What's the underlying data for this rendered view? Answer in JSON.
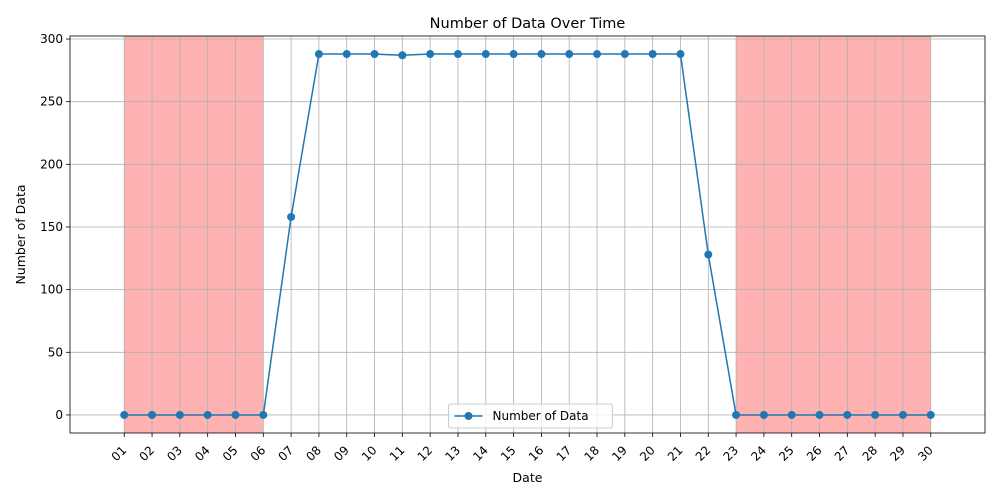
{
  "chart_data": {
    "type": "line",
    "title": "Number of Data Over Time",
    "xlabel": "Date",
    "ylabel": "Number of Data",
    "categories": [
      "01",
      "02",
      "03",
      "04",
      "05",
      "06",
      "07",
      "08",
      "09",
      "10",
      "11",
      "12",
      "13",
      "14",
      "15",
      "16",
      "17",
      "18",
      "19",
      "20",
      "21",
      "22",
      "23",
      "24",
      "25",
      "26",
      "27",
      "28",
      "29",
      "30"
    ],
    "series": [
      {
        "name": "Number of Data",
        "color": "#1f77b4",
        "values": [
          0,
          0,
          0,
          0,
          0,
          0,
          158,
          288,
          288,
          288,
          287,
          288,
          288,
          288,
          288,
          288,
          288,
          288,
          288,
          288,
          288,
          128,
          0,
          0,
          0,
          0,
          0,
          0,
          0,
          0
        ]
      }
    ],
    "ylim": [
      -14.4,
      302.4
    ],
    "yticks": [
      0,
      50,
      100,
      150,
      200,
      250,
      300
    ],
    "shaded_ranges": [
      {
        "from": "01",
        "to": "06",
        "color": "#ff0000",
        "opacity": 0.3
      },
      {
        "from": "23",
        "to": "30",
        "color": "#ff0000",
        "opacity": 0.3
      }
    ],
    "grid": true,
    "legend": {
      "position": "lower-center"
    }
  }
}
